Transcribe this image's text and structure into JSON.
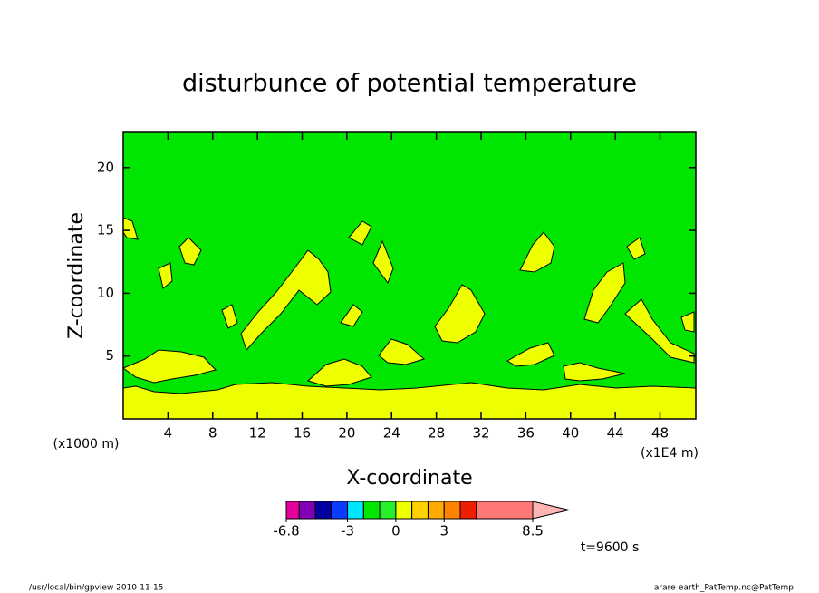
{
  "chart_data": {
    "type": "contour",
    "title": "disturbunce of potential temperature",
    "x_label": "X-coordinate",
    "y_label": "Z-coordinate",
    "x_unit": "(x1E4 m)",
    "y_unit": "(x1000 m)",
    "xlim": [
      0,
      51.2
    ],
    "ylim": [
      0,
      22.8
    ],
    "xticks": [
      4,
      8,
      12,
      16,
      20,
      24,
      28,
      32,
      36,
      40,
      44,
      48
    ],
    "yticks": [
      5,
      10,
      15,
      20
    ],
    "background_color": "#00e600",
    "colorbar": {
      "bounds": [
        -6.8,
        -6,
        -5,
        -4,
        -3,
        -2,
        -1,
        0,
        1,
        2,
        3,
        4,
        5,
        8.5
      ],
      "colors": [
        "#e6009c",
        "#8200b4",
        "#0000a0",
        "#0a3cff",
        "#00e6ff",
        "#00e600",
        "#28f028",
        "#eeff00",
        "#ffd200",
        "#ffaa00",
        "#ff8200",
        "#f01e00",
        "#ff7878"
      ],
      "extend_color": "#ffb4b4",
      "ticks": [
        -6.8,
        -3,
        0,
        3,
        8.5
      ]
    },
    "time_label": "t=9600 s",
    "footer_left": "/usr/local/bin/gpview   2010-11-15",
    "footer_right": "arare-earth_PatTemp.nc@PatTemp"
  }
}
